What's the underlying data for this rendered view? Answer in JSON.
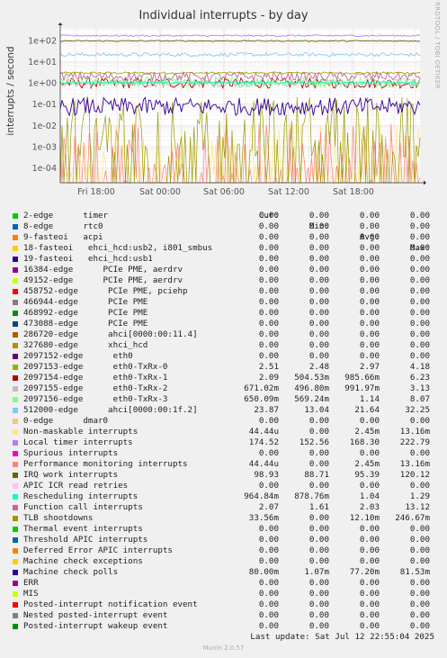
{
  "chart_data": {
    "type": "line",
    "title": "Individual interrupts - by day",
    "ylabel": "interrupts / second",
    "y_scale": "log",
    "yticks": [
      "1e-04",
      "1e-03",
      "1e-02",
      "1e-01",
      "1e+00",
      "1e+01",
      "1e+02"
    ],
    "xticks": [
      "Fri 18:00",
      "Sat 00:00",
      "Sat 06:00",
      "Sat 12:00",
      "Sat 18:00"
    ],
    "side_text": "RRDTOOL / TOBI OETIKER",
    "grid": true,
    "legend_headers": [
      "Cur:",
      "Min:",
      "Avg:",
      "Max:"
    ],
    "series": [
      {
        "name": "2-edge      timer",
        "color": "#00cc00",
        "cur": "0.00",
        "min": "0.00",
        "avg": "0.00",
        "max": "0.00"
      },
      {
        "name": "8-edge      rtc0",
        "color": "#0066b3",
        "cur": "0.00",
        "min": "0.00",
        "avg": "0.00",
        "max": "0.00"
      },
      {
        "name": "9-fasteoi   acpi",
        "color": "#ff8000",
        "cur": "0.00",
        "min": "0.00",
        "avg": "0.00",
        "max": "0.00"
      },
      {
        "name": "18-fasteoi   ehci_hcd:usb2, i801_smbus",
        "color": "#ffcc00",
        "cur": "0.00",
        "min": "0.00",
        "avg": "0.00",
        "max": "0.00"
      },
      {
        "name": "19-fasteoi   ehci_hcd:usb1",
        "color": "#330099",
        "cur": "0.00",
        "min": "0.00",
        "avg": "0.00",
        "max": "0.00"
      },
      {
        "name": "16384-edge      PCIe PME, aerdrv",
        "color": "#990099",
        "cur": "0.00",
        "min": "0.00",
        "avg": "0.00",
        "max": "0.00"
      },
      {
        "name": "49152-edge      PCIe PME, aerdrv",
        "color": "#ccff00",
        "cur": "0.00",
        "min": "0.00",
        "avg": "0.00",
        "max": "0.00"
      },
      {
        "name": "458752-edge      PCIe PME, pciehp",
        "color": "#ff0000",
        "cur": "0.00",
        "min": "0.00",
        "avg": "0.00",
        "max": "0.00"
      },
      {
        "name": "466944-edge      PCIe PME",
        "color": "#808080",
        "cur": "0.00",
        "min": "0.00",
        "avg": "0.00",
        "max": "0.00"
      },
      {
        "name": "468992-edge      PCIe PME",
        "color": "#008f00",
        "cur": "0.00",
        "min": "0.00",
        "avg": "0.00",
        "max": "0.00"
      },
      {
        "name": "473088-edge      PCIe PME",
        "color": "#00487d",
        "cur": "0.00",
        "min": "0.00",
        "avg": "0.00",
        "max": "0.00"
      },
      {
        "name": "286720-edge      ahci[0000:00:11.4]",
        "color": "#b35a00",
        "cur": "0.00",
        "min": "0.00",
        "avg": "0.00",
        "max": "0.00"
      },
      {
        "name": "327680-edge      xhci_hcd",
        "color": "#b38f00",
        "cur": "0.00",
        "min": "0.00",
        "avg": "0.00",
        "max": "0.00"
      },
      {
        "name": "2097152-edge      eth0",
        "color": "#6b006b",
        "cur": "0.00",
        "min": "0.00",
        "avg": "0.00",
        "max": "0.00"
      },
      {
        "name": "2097153-edge      eth0-TxRx-0",
        "color": "#8fb300",
        "cur": "2.51",
        "min": "2.48",
        "avg": "2.97",
        "max": "4.18"
      },
      {
        "name": "2097154-edge      eth0-TxRx-1",
        "color": "#b30000",
        "cur": "2.09",
        "min": "504.53m",
        "avg": "985.66m",
        "max": "6.23"
      },
      {
        "name": "2097155-edge      eth0-TxRx-2",
        "color": "#bebebe",
        "cur": "671.02m",
        "min": "496.80m",
        "avg": "991.97m",
        "max": "3.13"
      },
      {
        "name": "2097156-edge      eth0-TxRx-3",
        "color": "#80ff80",
        "cur": "650.09m",
        "min": "569.24m",
        "avg": "1.14",
        "max": "8.07"
      },
      {
        "name": "512000-edge      ahci[0000:00:1f.2]",
        "color": "#80c9ff",
        "cur": "23.87",
        "min": "13.04",
        "avg": "21.64",
        "max": "32.25"
      },
      {
        "name": "0-edge      dmar0",
        "color": "#ffc080",
        "cur": "0.00",
        "min": "0.00",
        "avg": "0.00",
        "max": "0.00"
      },
      {
        "name": "Non-maskable interrupts",
        "color": "#ffe680",
        "cur": "44.44u",
        "min": "0.00",
        "avg": "2.45m",
        "max": "13.16m"
      },
      {
        "name": "Local timer interrupts",
        "color": "#aa80ff",
        "cur": "174.52",
        "min": "152.56",
        "avg": "168.30",
        "max": "222.79"
      },
      {
        "name": "Spurious interrupts",
        "color": "#ee00cc",
        "cur": "0.00",
        "min": "0.00",
        "avg": "0.00",
        "max": "0.00"
      },
      {
        "name": "Performance monitoring interrupts",
        "color": "#ff8080",
        "cur": "44.44u",
        "min": "0.00",
        "avg": "2.45m",
        "max": "13.16m"
      },
      {
        "name": "IRQ work interrupts",
        "color": "#666600",
        "cur": "98.93",
        "min": "88.71",
        "avg": "95.39",
        "max": "120.12"
      },
      {
        "name": "APIC ICR read retries",
        "color": "#ffbfff",
        "cur": "0.00",
        "min": "0.00",
        "avg": "0.00",
        "max": "0.00"
      },
      {
        "name": "Rescheduling interrupts",
        "color": "#00ffcc",
        "cur": "964.84m",
        "min": "878.76m",
        "avg": "1.04",
        "max": "1.29"
      },
      {
        "name": "Function call interrupts",
        "color": "#cc6699",
        "cur": "2.07",
        "min": "1.61",
        "avg": "2.03",
        "max": "13.12"
      },
      {
        "name": "TLB shootdowns",
        "color": "#999900",
        "cur": "33.56m",
        "min": "0.00",
        "avg": "12.10m",
        "max": "246.67m"
      },
      {
        "name": "Thermal event interrupts",
        "color": "#00cc00",
        "cur": "0.00",
        "min": "0.00",
        "avg": "0.00",
        "max": "0.00"
      },
      {
        "name": "Threshold APIC interrupts",
        "color": "#0066b3",
        "cur": "0.00",
        "min": "0.00",
        "avg": "0.00",
        "max": "0.00"
      },
      {
        "name": "Deferred Error APIC interrupts",
        "color": "#ff8000",
        "cur": "0.00",
        "min": "0.00",
        "avg": "0.00",
        "max": "0.00"
      },
      {
        "name": "Machine check exceptions",
        "color": "#ffcc00",
        "cur": "0.00",
        "min": "0.00",
        "avg": "0.00",
        "max": "0.00"
      },
      {
        "name": "Machine check polls",
        "color": "#330099",
        "cur": "80.00m",
        "min": "1.07m",
        "avg": "77.20m",
        "max": "81.53m"
      },
      {
        "name": "ERR",
        "color": "#990099",
        "cur": "0.00",
        "min": "0.00",
        "avg": "0.00",
        "max": "0.00"
      },
      {
        "name": "MIS",
        "color": "#ccff00",
        "cur": "0.00",
        "min": "0.00",
        "avg": "0.00",
        "max": "0.00"
      },
      {
        "name": "Posted-interrupt notification event",
        "color": "#ff0000",
        "cur": "0.00",
        "min": "0.00",
        "avg": "0.00",
        "max": "0.00"
      },
      {
        "name": "Nested posted-interrupt event",
        "color": "#808080",
        "cur": "0.00",
        "min": "0.00",
        "avg": "0.00",
        "max": "0.00"
      },
      {
        "name": "Posted-interrupt wakeup event",
        "color": "#008f00",
        "cur": "0.00",
        "min": "0.00",
        "avg": "0.00",
        "max": "0.00"
      }
    ]
  },
  "footer": {
    "last_update": "Last update: Sat Jul 12 22:55:04 2025",
    "munin": "Munin 2.0.57"
  }
}
